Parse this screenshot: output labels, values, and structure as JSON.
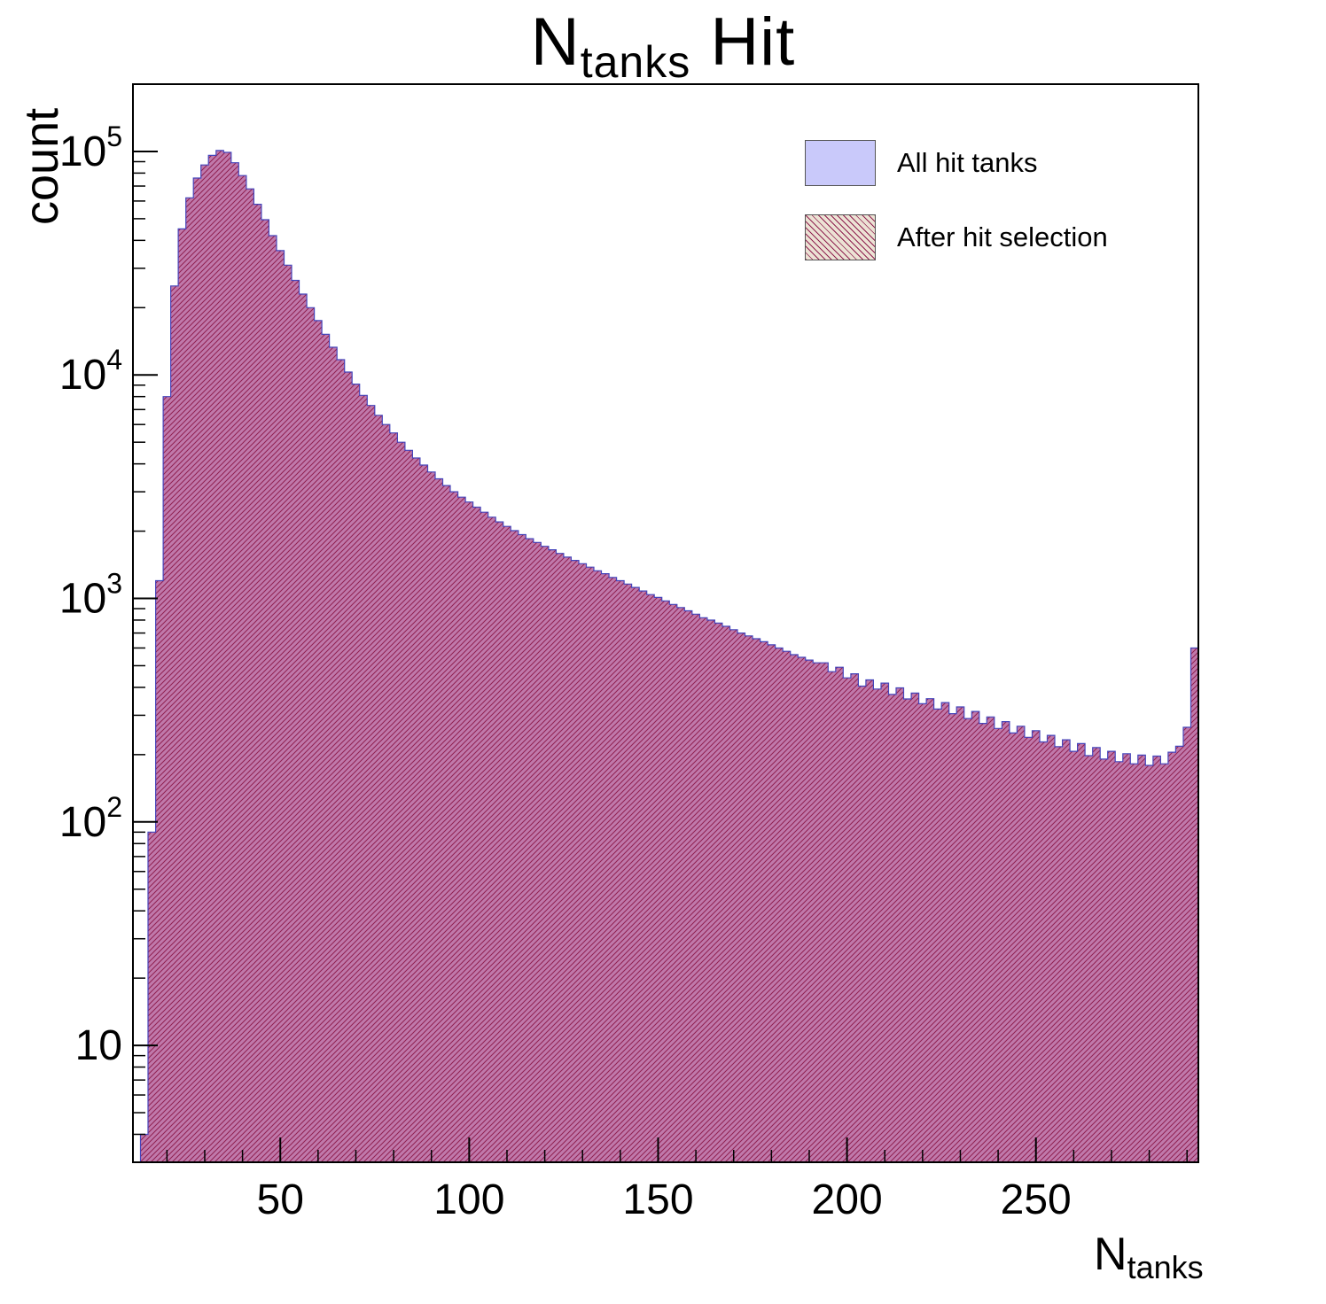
{
  "title": {
    "prefix": "N",
    "sub": "tanks",
    "suffix": " Hit"
  },
  "axes": {
    "y_label": "count",
    "x_label_prefix": "N",
    "x_label_sub": "tanks"
  },
  "colors": {
    "fill_all": "#c7c7f8",
    "edge": "#4545bb",
    "overlay": "rgba(186,49,100,0.52)",
    "hatch": "#8f2050",
    "frame": "#000000"
  },
  "chart_data": {
    "type": "bar",
    "title": "N_tanks Hit",
    "xlabel": "N_tanks",
    "ylabel": "count",
    "y_scale": "log",
    "grid": false,
    "legend_position": "top-right",
    "xlim": [
      11,
      293
    ],
    "ylim": [
      3,
      200000
    ],
    "xticks": [
      50,
      100,
      150,
      200,
      250
    ],
    "yticks": [
      {
        "value": 10,
        "base": "10",
        "exp": ""
      },
      {
        "value": 100,
        "base": "10",
        "exp": "2"
      },
      {
        "value": 1000,
        "base": "10",
        "exp": "3"
      },
      {
        "value": 10000,
        "base": "10",
        "exp": "4"
      },
      {
        "value": 100000,
        "base": "10",
        "exp": "5"
      }
    ],
    "bin_start": 13,
    "bin_width": 2,
    "series": [
      {
        "name": "All hit tanks",
        "values": [
          4,
          90,
          1200,
          8000,
          25000,
          45000,
          62000,
          76000,
          87000,
          96000,
          101000,
          99000,
          89000,
          78000,
          68000,
          58000,
          49500,
          42000,
          36000,
          31000,
          26500,
          23000,
          20000,
          17500,
          15200,
          13300,
          11700,
          10300,
          9100,
          8100,
          7300,
          6600,
          6000,
          5500,
          5000,
          4600,
          4250,
          3950,
          3680,
          3430,
          3200,
          3000,
          2840,
          2700,
          2560,
          2430,
          2310,
          2200,
          2100,
          2010,
          1930,
          1850,
          1780,
          1710,
          1650,
          1590,
          1530,
          1480,
          1430,
          1380,
          1330,
          1290,
          1240,
          1200,
          1160,
          1120,
          1080,
          1040,
          1010,
          975,
          940,
          910,
          880,
          850,
          820,
          800,
          775,
          750,
          725,
          700,
          680,
          660,
          640,
          620,
          600,
          580,
          560,
          545,
          530,
          515,
          515,
          470,
          492,
          441,
          460,
          405,
          432,
          393,
          418,
          372,
          398,
          355,
          377,
          338,
          356,
          320,
          342,
          305,
          327,
          290,
          312,
          276,
          295,
          262,
          281,
          250,
          268,
          239,
          256,
          228,
          244,
          217,
          233,
          207,
          224,
          198,
          215,
          191,
          207,
          186,
          202,
          182,
          199,
          179,
          197,
          182,
          205,
          218,
          265,
          600
        ]
      },
      {
        "name": "After hit selection",
        "values": [
          4,
          90,
          1200,
          8000,
          25000,
          45000,
          62000,
          76000,
          87000,
          96000,
          101000,
          99000,
          89000,
          78000,
          68000,
          58000,
          49500,
          42000,
          36000,
          31000,
          26500,
          23000,
          20000,
          17500,
          15200,
          13300,
          11700,
          10300,
          9100,
          8100,
          7300,
          6600,
          6000,
          5500,
          5000,
          4600,
          4250,
          3950,
          3680,
          3430,
          3200,
          3000,
          2840,
          2700,
          2560,
          2430,
          2310,
          2200,
          2100,
          2010,
          1930,
          1850,
          1780,
          1710,
          1650,
          1590,
          1530,
          1480,
          1430,
          1380,
          1330,
          1290,
          1240,
          1200,
          1160,
          1120,
          1080,
          1040,
          1010,
          975,
          940,
          910,
          880,
          850,
          820,
          800,
          775,
          750,
          725,
          700,
          680,
          660,
          640,
          620,
          600,
          580,
          560,
          545,
          530,
          515,
          515,
          470,
          492,
          441,
          460,
          405,
          432,
          393,
          418,
          372,
          398,
          355,
          377,
          338,
          356,
          320,
          342,
          305,
          327,
          290,
          312,
          276,
          295,
          262,
          281,
          250,
          268,
          239,
          256,
          228,
          244,
          217,
          233,
          207,
          224,
          198,
          215,
          191,
          207,
          186,
          202,
          182,
          199,
          179,
          197,
          182,
          205,
          218,
          265,
          600
        ]
      }
    ]
  }
}
